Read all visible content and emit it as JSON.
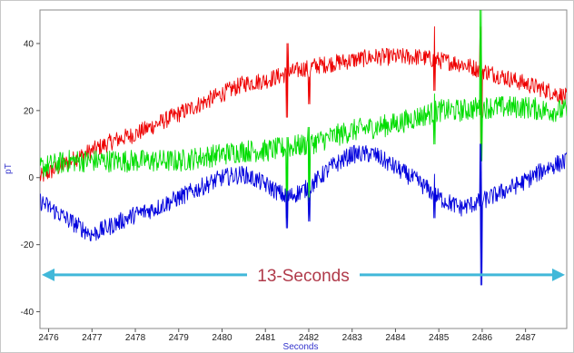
{
  "chart_data": {
    "type": "line",
    "title": "",
    "xlabel": "Seconds",
    "ylabel": "pT",
    "xlim": [
      2475.8,
      2487.95
    ],
    "ylim": [
      -45,
      50
    ],
    "xticks": [
      2476,
      2477,
      2478,
      2479,
      2480,
      2481,
      2482,
      2483,
      2484,
      2485,
      2486,
      2487
    ],
    "yticks": [
      -40,
      -20,
      0,
      20,
      40
    ],
    "grid": false,
    "legend": "none",
    "series": [
      {
        "color": "#ee0000",
        "x": [
          2475.8,
          2476.5,
          2477,
          2477.5,
          2478,
          2478.5,
          2479,
          2479.5,
          2480,
          2480.5,
          2481,
          2481.5,
          2482,
          2482.5,
          2483,
          2483.5,
          2484,
          2484.5,
          2485,
          2485.5,
          2486,
          2486.5,
          2487,
          2487.5,
          2487.95
        ],
        "y": [
          0,
          5,
          8,
          11,
          13,
          16,
          19,
          22,
          25,
          28,
          29,
          31,
          33,
          34,
          35,
          36,
          36,
          36,
          35,
          34,
          32,
          30,
          28,
          26,
          24
        ],
        "noise": 2.6
      },
      {
        "color": "#00dd00",
        "x": [
          2475.8,
          2476.5,
          2477,
          2477.5,
          2478,
          2478.5,
          2479,
          2479.5,
          2480,
          2480.5,
          2481,
          2481.5,
          2482,
          2482.5,
          2483,
          2483.5,
          2484,
          2484.5,
          2485,
          2485.5,
          2486,
          2486.5,
          2487,
          2487.5,
          2487.95
        ],
        "y": [
          3,
          5,
          5,
          5,
          5,
          5,
          5,
          6,
          7,
          8,
          8,
          9,
          10,
          12,
          14,
          15,
          16,
          18,
          20,
          20,
          21,
          21,
          21,
          20,
          20
        ],
        "noise": 3.4
      },
      {
        "color": "#0000dd",
        "x": [
          2475.8,
          2476.5,
          2477,
          2477.5,
          2478,
          2478.5,
          2479,
          2479.5,
          2480,
          2480.5,
          2481,
          2481.5,
          2482,
          2482.5,
          2483,
          2483.5,
          2484,
          2484.5,
          2485,
          2485.5,
          2486,
          2486.5,
          2487,
          2487.5,
          2487.95
        ],
        "y": [
          -7,
          -13,
          -17,
          -14,
          -11,
          -9,
          -6,
          -3,
          0,
          1,
          -2,
          -6,
          -3,
          3,
          7,
          7,
          3,
          -1,
          -6,
          -9,
          -7,
          -4,
          -1,
          3,
          5
        ],
        "noise": 2.7
      }
    ],
    "spikes": [
      {
        "x": 2481.5,
        "red": [
          40,
          18
        ],
        "green": [
          12,
          -12
        ],
        "blue": [
          -4,
          -15
        ]
      },
      {
        "x": 2482.0,
        "red": [
          30,
          22
        ],
        "green": [
          15,
          -7
        ],
        "blue": [
          -6,
          -13
        ]
      },
      {
        "x": 2484.9,
        "red": [
          45,
          26
        ],
        "green": [
          25,
          10
        ],
        "blue": [
          1,
          -12
        ]
      },
      {
        "x": 2485.97,
        "red": [
          45,
          10
        ],
        "green": [
          50,
          5
        ],
        "blue": [
          10,
          -32
        ]
      }
    ],
    "annotation": {
      "text": "13-Seconds",
      "x_start": 2475.8,
      "x_end": 2487.95,
      "y": -29,
      "color": "#41b8d9"
    }
  }
}
